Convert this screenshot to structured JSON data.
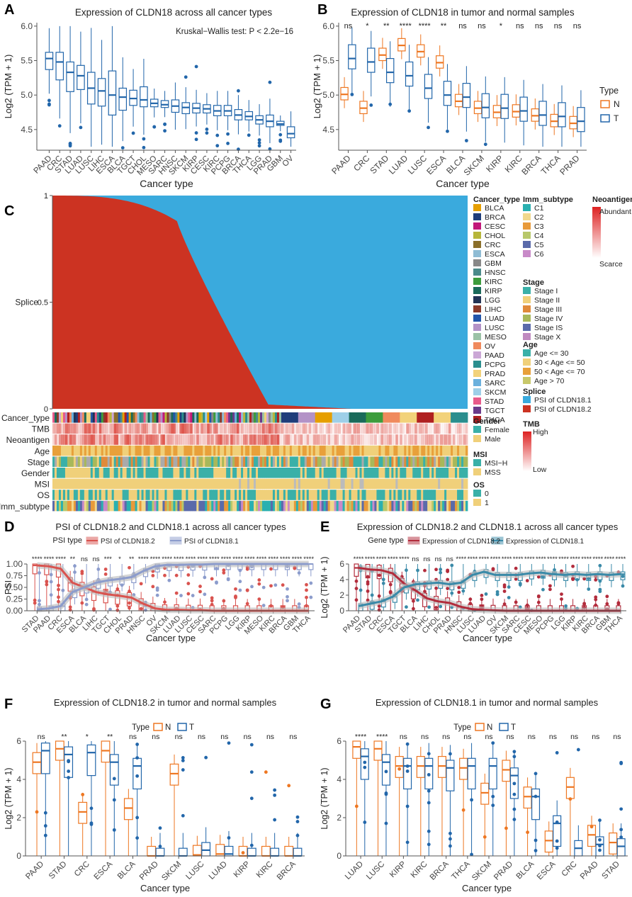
{
  "colors": {
    "blue": "#2266aa",
    "orange": "#ee7722",
    "red_psi": "#d9534f",
    "lavender_psi": "#8c9ccc",
    "red_expr": "#b22c3c",
    "teal_expr": "#3a8aa8",
    "splice_red": "#cc3322",
    "splice_blue": "#3aaadd"
  },
  "chart_data": [
    {
      "panel": "A",
      "type": "boxplot",
      "title": "Expression of CLDN18 across all cancer types",
      "annotation": "Kruskal−Wallis test: P < 2.2e−16",
      "xlabel": "Cancer type",
      "ylabel": "Log2 (TPM + 1)",
      "ylim": [
        4.2,
        6.05
      ],
      "yticks": [
        "4.5",
        "5.0",
        "5.5",
        "6.0"
      ],
      "categories": [
        "PAAD",
        "CRC",
        "STAD",
        "LUAD",
        "LUSC",
        "LIHC",
        "ESCA",
        "BLCA",
        "TGCT",
        "CHOL",
        "MESO",
        "SARC",
        "HNSC",
        "SKCM",
        "KIRP",
        "CESC",
        "KIRC",
        "PCPG",
        "BRCA",
        "THCA",
        "LGG",
        "PRAD",
        "GBM",
        "OV"
      ],
      "medians": [
        5.53,
        5.48,
        5.33,
        5.28,
        5.1,
        5.06,
        5.0,
        4.97,
        4.95,
        4.93,
        4.88,
        4.86,
        4.84,
        4.82,
        4.81,
        4.8,
        4.77,
        4.77,
        4.71,
        4.69,
        4.64,
        4.62,
        4.58,
        4.44
      ],
      "q1": [
        5.37,
        5.22,
        5.05,
        5.08,
        4.87,
        4.84,
        4.71,
        4.78,
        4.85,
        4.83,
        4.83,
        4.82,
        4.75,
        4.73,
        4.74,
        4.74,
        4.7,
        4.7,
        4.64,
        4.64,
        4.58,
        4.54,
        4.56,
        4.38
      ],
      "q3": [
        5.62,
        5.62,
        5.48,
        5.43,
        5.33,
        5.24,
        5.35,
        5.1,
        5.07,
        5.12,
        4.94,
        4.92,
        4.93,
        4.89,
        4.88,
        4.86,
        4.85,
        4.85,
        4.79,
        4.76,
        4.7,
        4.71,
        4.62,
        4.54
      ]
    },
    {
      "panel": "B",
      "type": "boxplot",
      "title": "Expression of CLDN18 in tumor and normal samples",
      "xlabel": "Cancer type",
      "ylabel": "Log2 (TPM + 1)",
      "ylim": [
        4.2,
        6.05
      ],
      "yticks": [
        "4.5",
        "5.0",
        "5.5",
        "6.0"
      ],
      "legend_title": "Type",
      "legend_items": [
        "N",
        "T"
      ],
      "categories": [
        "PAAD",
        "CRC",
        "STAD",
        "LUAD",
        "LUSC",
        "ESCA",
        "BLCA",
        "SKCM",
        "KIRP",
        "KIRC",
        "BRCA",
        "THCA",
        "PRAD"
      ],
      "significance": [
        "ns",
        "*",
        "**",
        "****",
        "****",
        "**",
        "ns",
        "ns",
        "*",
        "ns",
        "ns",
        "ns",
        "ns"
      ],
      "normal_medians": [
        5.01,
        4.81,
        5.58,
        5.72,
        5.63,
        5.47,
        4.91,
        4.81,
        4.75,
        4.76,
        4.7,
        4.62,
        4.59
      ],
      "tumor_medians": [
        5.53,
        5.48,
        5.33,
        5.28,
        5.1,
        5.0,
        4.97,
        4.82,
        4.81,
        4.77,
        4.71,
        4.69,
        4.62
      ]
    },
    {
      "panel": "C",
      "type": "area",
      "ylabel": "Splice",
      "yticks": [
        "0",
        "0.5",
        "1"
      ],
      "series": [
        "PSI of CLDN18.1",
        "PSI of CLDN18.2"
      ],
      "track_labels": [
        "Cancer_type",
        "TMB",
        "Neoantigen",
        "Age",
        "Stage",
        "Gender",
        "MSI",
        "OS",
        "Imm_subtype"
      ],
      "legend_cancer_type_title": "Cancer_type",
      "legend_cancer_type": [
        "BLCA",
        "BRCA",
        "CESC",
        "CHOL",
        "CRC",
        "ESCA",
        "GBM",
        "HNSC",
        "KIRC",
        "KIRP",
        "LGG",
        "LIHC",
        "LUAD",
        "LUSC",
        "MESO",
        "OV",
        "PAAD",
        "PCPG",
        "PRAD",
        "SARC",
        "SKCM",
        "STAD",
        "TGCT",
        "THCA"
      ],
      "legend_cancer_colors": [
        "#e69f00",
        "#1f3d7a",
        "#c2187a",
        "#b7b63a",
        "#8b6f2a",
        "#8fbcd4",
        "#888888",
        "#4a8a8a",
        "#3c9c3c",
        "#1a6a5a",
        "#223355",
        "#8b3a2a",
        "#2255aa",
        "#b392c7",
        "#9bc2a6",
        "#f08a5d",
        "#cba7d6",
        "#2a8e8e",
        "#f2d27a",
        "#6ab0dd",
        "#9ecfe8",
        "#e85a8a",
        "#6a3a8a",
        "#b02020"
      ],
      "legend_gender_title": "Gender",
      "legend_gender": [
        "Female",
        "Male"
      ],
      "legend_msi_title": "MSI",
      "legend_msi": [
        "MSI−H",
        "MSS"
      ],
      "legend_os_title": "OS",
      "legend_os": [
        "0",
        "1"
      ],
      "legend_imm_title": "Imm_subtype",
      "legend_imm": [
        "C1",
        "C2",
        "C3",
        "C4",
        "C5",
        "C6"
      ],
      "legend_imm_colors": [
        "#2ab0b0",
        "#f0d88c",
        "#e89a3a",
        "#b8c86a",
        "#5a6aaa",
        "#c88ac8"
      ],
      "legend_stage_title": "Stage",
      "legend_stage": [
        "Stage I",
        "Stage II",
        "Stage III",
        "Stage IV",
        "Stage IS",
        "Stage X"
      ],
      "legend_stage_colors": [
        "#3ab0a8",
        "#f0d07a",
        "#e08a3a",
        "#a8b85a",
        "#5a6aaa",
        "#c08ac0"
      ],
      "legend_age_title": "Age",
      "legend_age": [
        "Age <= 30",
        "30 < Age <= 50",
        "50 < Age <= 70",
        "Age > 70"
      ],
      "legend_age_colors": [
        "#3ab0a8",
        "#f0d07a",
        "#e8a03a",
        "#c8c86a"
      ],
      "legend_splice_title": "Splice",
      "legend_splice": [
        "PSI of CLDN18.1",
        "PSI of CLDN18.2"
      ],
      "legend_neo_title": "Neoantigen",
      "legend_neo": [
        "Abundant",
        "Scarce"
      ],
      "legend_tmb_title": "TMB",
      "legend_tmb": [
        "High",
        "Low"
      ]
    },
    {
      "panel": "D",
      "type": "boxplot",
      "title": "PSI of CLDN18.2 and CLDN18.1 across all cancer types",
      "xlabel": "Cancer type",
      "ylabel": "PSI",
      "ylim": [
        0,
        1
      ],
      "yticks": [
        "0.00",
        "0.25",
        "0.50",
        "0.75",
        "1.00"
      ],
      "legend_title": "PSI type",
      "legend_items": [
        "PSI of CLDN18.2",
        "PSI of CLDN18.1"
      ],
      "categories": [
        "STAD",
        "PAAD",
        "CRC",
        "ESCA",
        "BLCA",
        "LIHC",
        "TGCT",
        "CHOL",
        "PRAD",
        "HNSC",
        "OV",
        "SKCM",
        "LUAD",
        "LUSC",
        "CESC",
        "SARC",
        "PCPG",
        "LGG",
        "KIRP",
        "MESO",
        "KIRC",
        "BRCA",
        "GBM",
        "THCA"
      ],
      "significance": [
        "****",
        "****",
        "****",
        "**",
        "ns",
        "ns",
        "***",
        "*",
        "**",
        "****",
        "****",
        "****",
        "****",
        "****",
        "****",
        "****",
        "****",
        "****",
        "****",
        "****",
        "****",
        "****",
        "****",
        "****"
      ],
      "psi_182_medians": [
        0.97,
        0.95,
        0.9,
        0.6,
        0.5,
        0.4,
        0.35,
        0.32,
        0.28,
        0.15,
        0.05,
        0.02,
        0.02,
        0.01,
        0.01,
        0.0,
        0.0,
        0.0,
        0.0,
        0.0,
        0.0,
        0.0,
        0.0,
        0.0
      ],
      "psi_181_medians": [
        0.03,
        0.05,
        0.1,
        0.4,
        0.5,
        0.6,
        0.65,
        0.68,
        0.72,
        0.85,
        0.95,
        0.98,
        0.98,
        0.99,
        0.99,
        1.0,
        1.0,
        1.0,
        1.0,
        1.0,
        1.0,
        1.0,
        1.0,
        1.0
      ]
    },
    {
      "panel": "E",
      "type": "boxplot",
      "title": "Expression of CLDN18.2 and CLDN18.1 across all cancer types",
      "xlabel": "Cancer type",
      "ylabel": "Log2 (TPM + 1)",
      "ylim": [
        0,
        6
      ],
      "yticks": [
        "0",
        "2",
        "4",
        "6"
      ],
      "legend_title": "Gene type",
      "legend_items": [
        "Expression of CLDN18.2",
        "Expression of CLDN18.1"
      ],
      "categories": [
        "PAAD",
        "STAD",
        "CRC",
        "ESCA",
        "TGCT",
        "BLCA",
        "LIHC",
        "CHOL",
        "PRAD",
        "HNSC",
        "LUSC",
        "LUAD",
        "OV",
        "SKCM",
        "SARC",
        "CESC",
        "MESO",
        "PCPG",
        "LGG",
        "KIRP",
        "KIRC",
        "BRCA",
        "GBM",
        "THCA"
      ],
      "significance": [
        "****",
        "****",
        "****",
        "****",
        "****",
        "ns",
        "ns",
        "ns",
        "ns",
        "****",
        "****",
        "****",
        "****",
        "****",
        "****",
        "****",
        "****",
        "****",
        "****",
        "****",
        "****",
        "****",
        "****",
        "****"
      ],
      "cldn182_medians": [
        5.5,
        5.3,
        5.2,
        4.8,
        3.5,
        2.6,
        1.6,
        1.2,
        1.0,
        0.5,
        0.2,
        0.1,
        0.05,
        0,
        0,
        0,
        0,
        0,
        0,
        0,
        0,
        0,
        0,
        0
      ],
      "cldn181_medians": [
        0.6,
        0.9,
        1.2,
        1.8,
        3.0,
        3.4,
        3.5,
        3.6,
        3.4,
        3.6,
        4.6,
        5.0,
        4.6,
        4.6,
        4.6,
        4.8,
        4.9,
        4.7,
        4.6,
        4.7,
        4.6,
        4.7,
        4.6,
        4.7
      ]
    },
    {
      "panel": "F",
      "type": "boxplot",
      "title": "Expression of CLDN18.2 in tumor and normal samples",
      "xlabel": "Cancer type",
      "ylabel": "Log2 (TPM + 1)",
      "ylim": [
        0,
        6
      ],
      "yticks": [
        "0",
        "2",
        "4",
        "6"
      ],
      "legend_title": "Type",
      "legend_items": [
        "N",
        "T"
      ],
      "categories": [
        "PAAD",
        "STAD",
        "CRC",
        "ESCA",
        "BLCA",
        "PRAD",
        "SKCM",
        "LUSC",
        "LUAD",
        "KIRP",
        "KIRC",
        "BRCA"
      ],
      "significance": [
        "ns",
        "**",
        "*",
        "**",
        "ns",
        "ns",
        "ns",
        "ns",
        "ns",
        "ns",
        "ns",
        "ns"
      ],
      "normal_medians": [
        4.9,
        5.6,
        2.3,
        5.5,
        2.5,
        0.0,
        4.3,
        0.05,
        0.1,
        0.0,
        0.0,
        0.0
      ],
      "tumor_medians": [
        5.5,
        5.3,
        5.4,
        4.9,
        4.7,
        0.0,
        0.0,
        0.3,
        0.1,
        0.0,
        0.0,
        0.0
      ]
    },
    {
      "panel": "G",
      "type": "boxplot",
      "title": "Expression of CLDN18.1 in tumor and normal samples",
      "xlabel": "Cancer type",
      "ylabel": "Log2 (TPM + 1)",
      "ylim": [
        0,
        6
      ],
      "yticks": [
        "0",
        "2",
        "4",
        "6"
      ],
      "legend_title": "Type",
      "legend_items": [
        "N",
        "T"
      ],
      "categories": [
        "LUAD",
        "LUSC",
        "KIRP",
        "KIRC",
        "BRCA",
        "THCA",
        "SKCM",
        "PRAD",
        "BLCA",
        "ESCA",
        "CRC",
        "PAAD",
        "STAD"
      ],
      "significance": [
        "****",
        "****",
        "ns",
        "ns",
        "ns",
        "ns",
        "ns",
        "ns",
        "ns",
        "ns",
        "ns",
        "ns",
        "ns"
      ],
      "normal_medians": [
        5.7,
        5.6,
        4.7,
        4.7,
        4.7,
        4.6,
        3.3,
        4.5,
        3.1,
        0.8,
        3.6,
        1.1,
        0.7
      ],
      "tumor_medians": [
        5.2,
        4.9,
        4.7,
        4.7,
        4.6,
        4.7,
        4.7,
        4.2,
        3.1,
        1.7,
        0.4,
        0.6,
        0.5
      ]
    }
  ],
  "panel_letters": [
    "A",
    "B",
    "C",
    "D",
    "E",
    "F",
    "G"
  ]
}
